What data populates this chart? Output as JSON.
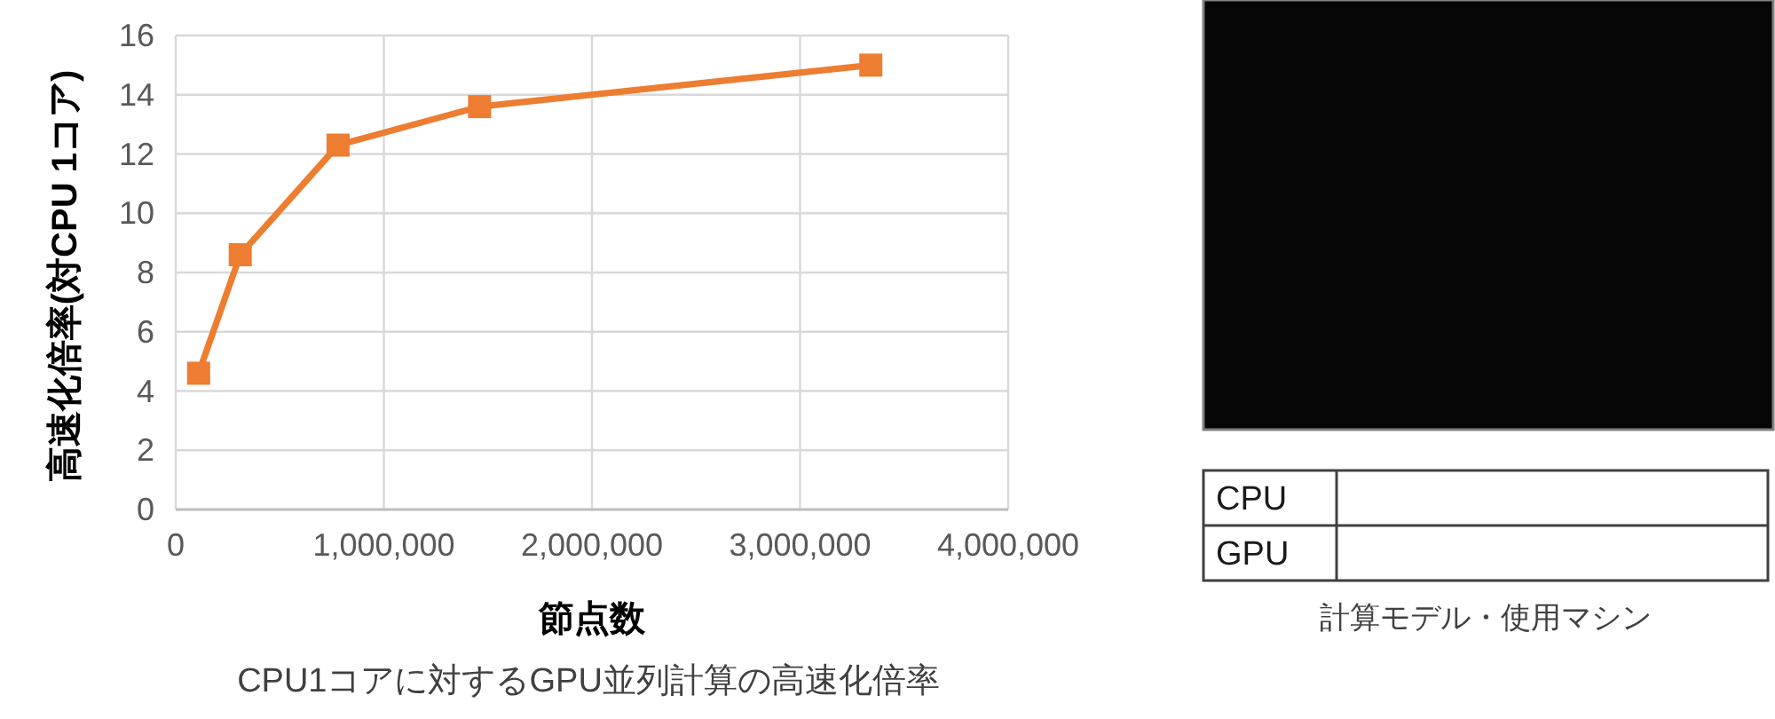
{
  "chart_data": [
    {
      "type": "line",
      "xlabel": "節点数",
      "ylabel": "高速化倍率(対CPU 1コア)",
      "annotations": [
        "CPU1コアに対するGPU並列計算の高速化倍率"
      ],
      "x": [
        110000,
        310000,
        780000,
        1460000,
        3340000
      ],
      "series": [
        {
          "color": "#ed7d31",
          "values": [
            4.6,
            8.6,
            12.3,
            13.6,
            15.0
          ]
        }
      ],
      "xlim": [
        0,
        4000000
      ],
      "xticks": [
        0,
        {
          "value": 1000000,
          "label": "1,000,000"
        },
        {
          "value": 2000000,
          "label": "2,000,000"
        },
        {
          "value": 3000000,
          "label": "3,000,000"
        },
        {
          "value": 4000000,
          "label": "4,000,000"
        }
      ],
      "ylim": [
        0,
        16
      ],
      "yticks": [
        0,
        2,
        4,
        6,
        8,
        10,
        12,
        14,
        16
      ],
      "grid": true,
      "marker": "square",
      "line_style": "solid"
    },
    {
      "type": "other",
      "title": "計算モデル・使用マシン",
      "annotations": [
        "CPU",
        "GPU"
      ]
    }
  ]
}
